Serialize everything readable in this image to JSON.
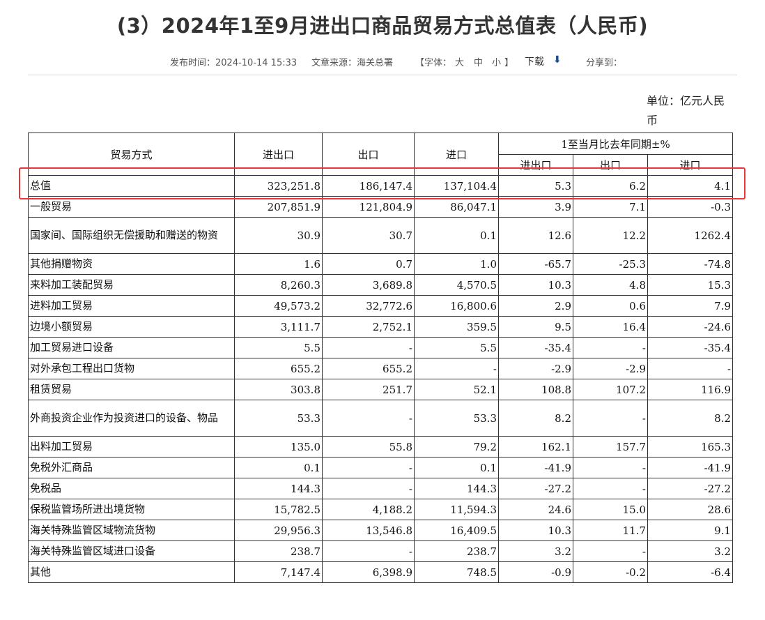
{
  "title": "(3）2024年1至9月进出口商品贸易方式总值表（人民币)",
  "meta": {
    "publish_time": "发布时间：2024-10-14 15:33",
    "source": "文章来源：海关总署",
    "font_label": "【字体：",
    "font_large": "大",
    "font_medium": "中",
    "font_small": "小",
    "font_close": "】",
    "download": "下载",
    "download_icon": "download-arrow",
    "share": "分享到："
  },
  "unit": "单位：亿元人民币",
  "table": {
    "headers": {
      "trade_mode": "贸易方式",
      "total": "进出口",
      "export": "出口",
      "import": "进口",
      "yoy_group": "1至当月比去年同期±%",
      "yoy_total": "进出口",
      "yoy_export": "出口",
      "yoy_import": "进口"
    },
    "rows": [
      {
        "name": "总值",
        "total": "323,251.8",
        "export": "186,147.4",
        "import": "137,104.4",
        "yoy_total": "5.3",
        "yoy_export": "6.2",
        "yoy_import": "4.1"
      },
      {
        "name": "一般贸易",
        "total": "207,851.9",
        "export": "121,804.9",
        "import": "86,047.1",
        "yoy_total": "3.9",
        "yoy_export": "7.1",
        "yoy_import": "-0.3"
      },
      {
        "name": "国家间、国际组织无偿援助和赠送的物资",
        "total": "30.9",
        "export": "30.7",
        "import": "0.1",
        "yoy_total": "12.6",
        "yoy_export": "12.2",
        "yoy_import": "1262.4"
      },
      {
        "name": "其他捐赠物资",
        "total": "1.6",
        "export": "0.7",
        "import": "1.0",
        "yoy_total": "-65.7",
        "yoy_export": "-25.3",
        "yoy_import": "-74.8"
      },
      {
        "name": "来料加工装配贸易",
        "total": "8,260.3",
        "export": "3,689.8",
        "import": "4,570.5",
        "yoy_total": "10.3",
        "yoy_export": "4.8",
        "yoy_import": "15.3"
      },
      {
        "name": "进料加工贸易",
        "total": "49,573.2",
        "export": "32,772.6",
        "import": "16,800.6",
        "yoy_total": "2.9",
        "yoy_export": "0.6",
        "yoy_import": "7.9"
      },
      {
        "name": "边境小额贸易",
        "total": "3,111.7",
        "export": "2,752.1",
        "import": "359.5",
        "yoy_total": "9.5",
        "yoy_export": "16.4",
        "yoy_import": "-24.6"
      },
      {
        "name": "加工贸易进口设备",
        "total": "5.5",
        "export": "-",
        "import": "5.5",
        "yoy_total": "-35.4",
        "yoy_export": "-",
        "yoy_import": "-35.4"
      },
      {
        "name": "对外承包工程出口货物",
        "total": "655.2",
        "export": "655.2",
        "import": "-",
        "yoy_total": "-2.9",
        "yoy_export": "-2.9",
        "yoy_import": "-"
      },
      {
        "name": "租赁贸易",
        "total": "303.8",
        "export": "251.7",
        "import": "52.1",
        "yoy_total": "108.8",
        "yoy_export": "107.2",
        "yoy_import": "116.9"
      },
      {
        "name": "外商投资企业作为投资进口的设备、物品",
        "total": "53.3",
        "export": "-",
        "import": "53.3",
        "yoy_total": "8.2",
        "yoy_export": "-",
        "yoy_import": "8.2"
      },
      {
        "name": "出料加工贸易",
        "total": "135.0",
        "export": "55.8",
        "import": "79.2",
        "yoy_total": "162.1",
        "yoy_export": "157.7",
        "yoy_import": "165.3"
      },
      {
        "name": "免税外汇商品",
        "total": "0.1",
        "export": "-",
        "import": "0.1",
        "yoy_total": "-41.9",
        "yoy_export": "-",
        "yoy_import": "-41.9"
      },
      {
        "name": "免税品",
        "total": "144.3",
        "export": "-",
        "import": "144.3",
        "yoy_total": "-27.2",
        "yoy_export": "-",
        "yoy_import": "-27.2"
      },
      {
        "name": "保税监管场所进出境货物",
        "total": "15,782.5",
        "export": "4,188.2",
        "import": "11,594.3",
        "yoy_total": "24.6",
        "yoy_export": "15.0",
        "yoy_import": "28.6"
      },
      {
        "name": "海关特殊监管区域物流货物",
        "total": "29,956.3",
        "export": "13,546.8",
        "import": "16,409.5",
        "yoy_total": "10.3",
        "yoy_export": "11.7",
        "yoy_import": "9.1"
      },
      {
        "name": "海关特殊监管区域进口设备",
        "total": "238.7",
        "export": "-",
        "import": "238.7",
        "yoy_total": "3.2",
        "yoy_export": "-",
        "yoy_import": "3.2"
      },
      {
        "name": "其他",
        "total": "7,147.4",
        "export": "6,398.9",
        "import": "748.5",
        "yoy_total": "-0.9",
        "yoy_export": "-0.2",
        "yoy_import": "-6.4"
      }
    ]
  },
  "highlight_color": "#e8373a"
}
